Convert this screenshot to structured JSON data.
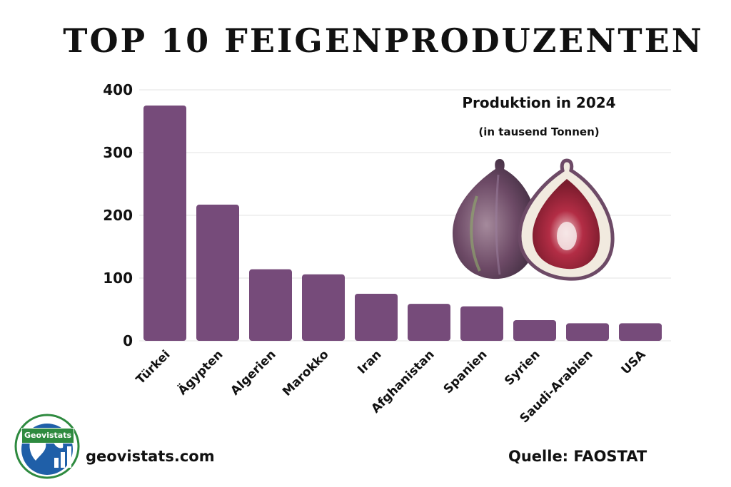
{
  "title": "TOP 10 FEIGENPRODUZENTEN",
  "footer": {
    "site": "geovistats.com",
    "source": "Quelle: FAOSTAT",
    "logo_text": "Geovistats"
  },
  "colors": {
    "bar": "#764b7a",
    "grid": "#e3e3e3",
    "logo_green": "#2e8a3f",
    "logo_blue": "#1f5fa8"
  },
  "illustration": "two figs, one whole and one cut in half",
  "chart_data": {
    "type": "bar",
    "title": "Produktion in 2024",
    "subtitle": "(in tausend Tonnen)",
    "categories": [
      "Türkei",
      "Ägypten",
      "Algerien",
      "Marokko",
      "Iran",
      "Afghanistan",
      "Spanien",
      "Syrien",
      "Saudi-Arabien",
      "USA"
    ],
    "values": [
      375,
      217,
      114,
      106,
      75,
      59,
      55,
      33,
      28,
      28
    ],
    "ylim": [
      0,
      400
    ],
    "yticks": [
      "0",
      "100",
      "200",
      "300",
      "400"
    ],
    "grid": true,
    "xlabel": "",
    "ylabel": ""
  }
}
